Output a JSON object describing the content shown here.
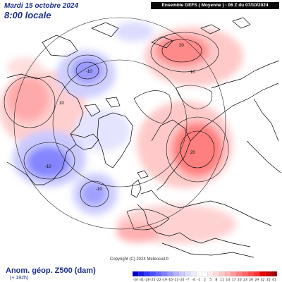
{
  "header": {
    "date_text": "Mardi 15 octobre 2024",
    "time_text": "8:00 locale",
    "model_run_text": "Ensemble GEFS   ( Moyenne )   - 06 Z du 07/10/2024"
  },
  "footer": {
    "title": "Anom. géop. Z500 (dam)",
    "lead_time": "(+ 192h)",
    "copyright": "Copyright (C) 2024 Meteociel.fr"
  },
  "colorbar": {
    "tick_labels": [
      "-34",
      "-31",
      "-28",
      "-25",
      "-22",
      "-19",
      "-16",
      "-13",
      "-10",
      "-7",
      "-4",
      "-1",
      "2",
      "5",
      "8",
      "11",
      "14",
      "17",
      "20",
      "23",
      "26",
      "29",
      "32",
      "35",
      "41"
    ],
    "colors": [
      "#0000c8",
      "#1a1ae0",
      "#3333ff",
      "#4d4dff",
      "#6666ff",
      "#8080ff",
      "#9999ff",
      "#b3b3ff",
      "#c8c8ff",
      "#dcdcff",
      "#ececff",
      "#ffffff",
      "#ffffff",
      "#ffecec",
      "#ffdcdc",
      "#ffc8c8",
      "#ffb3b3",
      "#ff9999",
      "#ff8080",
      "#ff6666",
      "#ff4d4d",
      "#ff3333",
      "#e60000",
      "#c80000",
      "#a00000"
    ]
  },
  "map": {
    "anomaly_labels": [
      {
        "id": "label-10-north-america-low",
        "text": "-10"
      },
      {
        "id": "label-20-siberia-high",
        "text": "20"
      },
      {
        "id": "label-10-siberia-inner",
        "text": "10"
      },
      {
        "id": "label-10-canada-high",
        "text": "10"
      },
      {
        "id": "label-20-scandinavia-high",
        "text": "20"
      },
      {
        "id": "label-10-atlantic-low",
        "text": "-10"
      },
      {
        "id": "label-10-pacific-low",
        "text": "-10"
      }
    ],
    "colors": {
      "positive_strong": "#ff6a6a",
      "positive_mid": "#ffadad",
      "positive_light": "#ffd6d6",
      "negative_strong": "#6a6aff",
      "negative_mid": "#a8a8ff",
      "negative_light": "#d8d8ff",
      "coastline": "#000000",
      "contour": "#000000"
    }
  }
}
